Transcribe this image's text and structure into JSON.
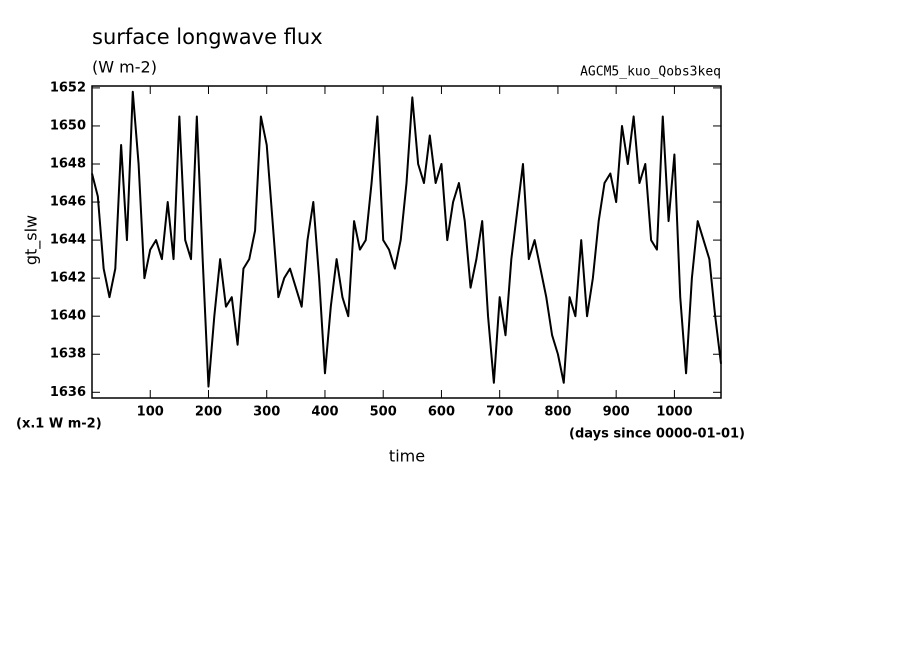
{
  "chart_data": {
    "type": "line",
    "title": "surface longwave flux",
    "subtitle": "(W m-2)",
    "annotation": "AGCM5_kuo_Qobs3keq",
    "y_label": "gt_slw",
    "y_unit_label": "(x.1 W m-2)",
    "x_label": "time",
    "x_unit_label": "(days since 0000-01-01)",
    "x": [
      0,
      10,
      20,
      30,
      40,
      50,
      60,
      70,
      80,
      90,
      100,
      110,
      120,
      130,
      140,
      150,
      160,
      170,
      180,
      190,
      200,
      210,
      220,
      230,
      240,
      250,
      260,
      270,
      280,
      290,
      300,
      310,
      320,
      330,
      340,
      350,
      360,
      370,
      380,
      390,
      400,
      410,
      420,
      430,
      440,
      450,
      460,
      470,
      480,
      490,
      500,
      510,
      520,
      530,
      540,
      550,
      560,
      570,
      580,
      590,
      600,
      610,
      620,
      630,
      640,
      650,
      660,
      670,
      680,
      690,
      700,
      710,
      720,
      730,
      740,
      750,
      760,
      770,
      780,
      790,
      800,
      810,
      820,
      830,
      840,
      850,
      860,
      870,
      880,
      890,
      900,
      910,
      920,
      930,
      940,
      950,
      960,
      970,
      980,
      990,
      1000,
      1010,
      1020,
      1030,
      1040,
      1050,
      1060,
      1070,
      1080
    ],
    "series": [
      {
        "name": "gt_slw",
        "color": "#000000",
        "values": [
          1647.5,
          1646.3,
          1642.5,
          1641,
          1642.5,
          1649,
          1644,
          1651.8,
          1648,
          1642,
          1643.5,
          1644,
          1643,
          1646,
          1643,
          1650.5,
          1644,
          1643,
          1650.5,
          1643,
          1636.3,
          1640,
          1643,
          1640.5,
          1641,
          1638.5,
          1642.5,
          1643,
          1644.5,
          1650.5,
          1649,
          1645,
          1641,
          1642,
          1642.5,
          1641.5,
          1640.5,
          1644,
          1646,
          1642,
          1637,
          1640.5,
          1643,
          1641,
          1640,
          1645,
          1643.5,
          1644,
          1647,
          1650.5,
          1644,
          1643.5,
          1642.5,
          1644,
          1647,
          1651.5,
          1648,
          1647,
          1649.5,
          1647,
          1648,
          1644,
          1646,
          1647,
          1645,
          1641.5,
          1643,
          1645,
          1640,
          1636.5,
          1641,
          1639,
          1643,
          1645.5,
          1648,
          1643,
          1644,
          1642.5,
          1641,
          1639,
          1638,
          1636.5,
          1641,
          1640,
          1644,
          1640,
          1642,
          1645,
          1647,
          1647.5,
          1646,
          1650,
          1648,
          1650.5,
          1647,
          1648,
          1644,
          1643.5,
          1650.5,
          1645,
          1648.5,
          1641,
          1637,
          1642,
          1645,
          1644,
          1643,
          1640,
          1637.5
        ]
      }
    ],
    "xlim": [
      0,
      1080
    ],
    "xticks": [
      100,
      200,
      300,
      400,
      500,
      600,
      700,
      800,
      900,
      1000
    ],
    "ylim": [
      1635.7,
      1652.1
    ],
    "yticks": [
      1636,
      1638,
      1640,
      1642,
      1644,
      1646,
      1648,
      1650,
      1652
    ]
  }
}
